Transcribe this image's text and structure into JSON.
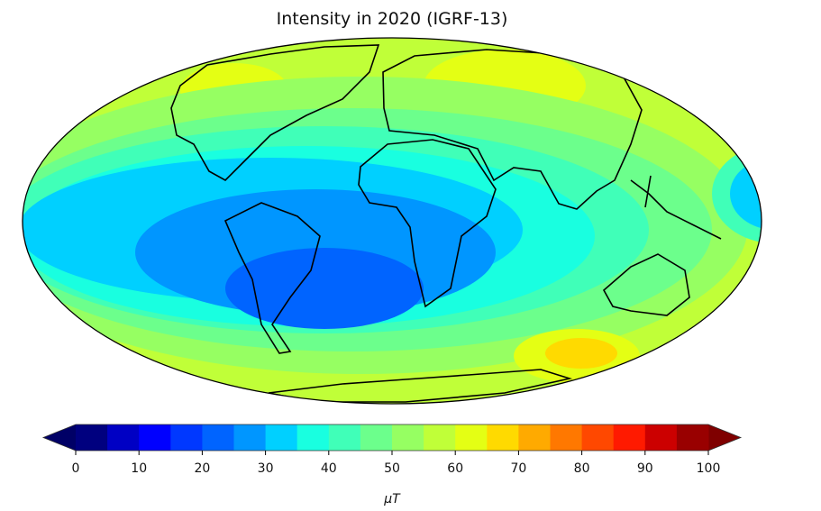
{
  "title": "Intensity in 2020 (IGRF-13)",
  "chart_data": {
    "type": "heatmap",
    "title": "Intensity in 2020 (IGRF-13)",
    "projection": "Mollweide (global, ellipse)",
    "colormap": "jet",
    "colorbar": {
      "label": "μT",
      "ticks": [
        "0",
        "10",
        "20",
        "30",
        "40",
        "50",
        "60",
        "70",
        "80",
        "90",
        "100"
      ],
      "levels": [
        0,
        5,
        10,
        15,
        20,
        25,
        30,
        35,
        40,
        45,
        50,
        55,
        60,
        65,
        70,
        75,
        80,
        85,
        90,
        95,
        100
      ],
      "extend": "both",
      "colors": [
        "#00007f",
        "#0000c4",
        "#0000ff",
        "#0038ff",
        "#0064ff",
        "#0096ff",
        "#00d0ff",
        "#19ffe0",
        "#40ffb8",
        "#6cff8c",
        "#96ff62",
        "#c0ff38",
        "#e4ff14",
        "#ffda00",
        "#ffaa00",
        "#ff7800",
        "#ff4800",
        "#ff1a00",
        "#cc0000",
        "#990000"
      ],
      "under_color": "#000066",
      "over_color": "#7f0000"
    },
    "field_range_approx": [
      22,
      67
    ]
  }
}
